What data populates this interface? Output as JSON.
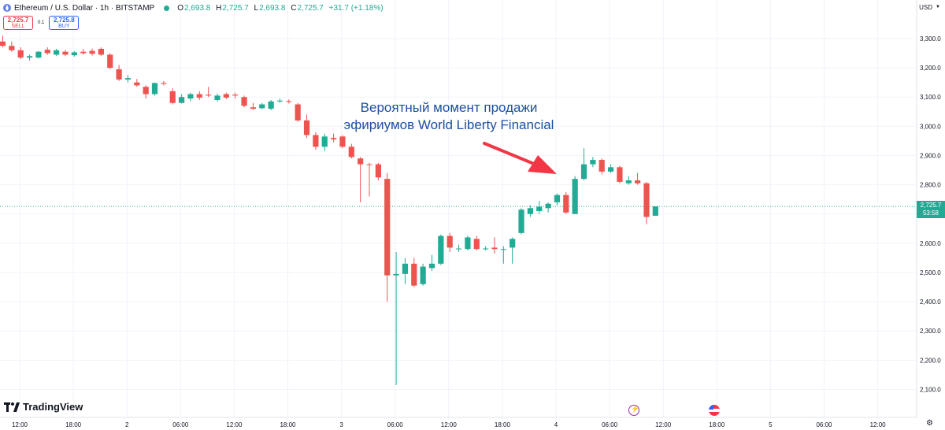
{
  "header": {
    "symbol": "Ethereum / U.S. Dollar · 1h · BITSTAMP",
    "open_label": "O",
    "open": "2,693.8",
    "high_label": "H",
    "high": "2,725.7",
    "low_label": "L",
    "low": "2,693.8",
    "close_label": "C",
    "close": "2,725.7",
    "change": "+31.7 (+1.18%)"
  },
  "trade": {
    "sell_price": "2,725.7",
    "sell_label": "SELL",
    "spread": "0.1",
    "buy_price": "2,725.8",
    "buy_label": "BUY"
  },
  "currency": "USD",
  "last_price": "2,725.7",
  "countdown": "53:58",
  "logo_text": "TradingView",
  "annotation": {
    "line1": "Вероятный момент продажи",
    "line2": "эфириумов World Liberty Financial"
  },
  "colors": {
    "up": "#22ab94",
    "down": "#ef5350",
    "annotation": "#1d4fa3",
    "arrow": "#f23645"
  },
  "chart_data": {
    "type": "candlestick",
    "interval": "1h",
    "ylim": [
      2050,
      3350
    ],
    "y_ticks": [
      2100,
      2200,
      2300,
      2400,
      2500,
      2600,
      2700,
      2800,
      2900,
      3000,
      3100,
      3200,
      3300
    ],
    "y_tick_labels": [
      "2,100.0",
      "2,200.0",
      "2,300.0",
      "2,400.0",
      "2,500.0",
      "2,600.0",
      "2,700.0",
      "2,800.0",
      "2,900.0",
      "3,000.0",
      "3,100.0",
      "3,200.0",
      "3,300.0"
    ],
    "x_labels": [
      "12:00",
      "18:00",
      "2",
      "06:00",
      "12:00",
      "18:00",
      "3",
      "06:00",
      "12:00",
      "18:00",
      "4",
      "06:00",
      "12:00",
      "18:00",
      "5",
      "06:00",
      "12:00"
    ],
    "candles": [
      {
        "o": 3290,
        "h": 3310,
        "l": 3270,
        "c": 3275
      },
      {
        "o": 3275,
        "h": 3290,
        "l": 3255,
        "c": 3260
      },
      {
        "o": 3260,
        "h": 3270,
        "l": 3230,
        "c": 3235
      },
      {
        "o": 3235,
        "h": 3245,
        "l": 3225,
        "c": 3240
      },
      {
        "o": 3235,
        "h": 3258,
        "l": 3232,
        "c": 3255
      },
      {
        "o": 3262,
        "h": 3270,
        "l": 3245,
        "c": 3250
      },
      {
        "o": 3245,
        "h": 3265,
        "l": 3240,
        "c": 3260
      },
      {
        "o": 3255,
        "h": 3262,
        "l": 3240,
        "c": 3245
      },
      {
        "o": 3243,
        "h": 3257,
        "l": 3238,
        "c": 3253
      },
      {
        "o": 3255,
        "h": 3265,
        "l": 3245,
        "c": 3250
      },
      {
        "o": 3258,
        "h": 3266,
        "l": 3242,
        "c": 3248
      },
      {
        "o": 3265,
        "h": 3270,
        "l": 3240,
        "c": 3245
      },
      {
        "o": 3245,
        "h": 3250,
        "l": 3195,
        "c": 3200
      },
      {
        "o": 3195,
        "h": 3210,
        "l": 3155,
        "c": 3160
      },
      {
        "o": 3160,
        "h": 3175,
        "l": 3150,
        "c": 3165
      },
      {
        "o": 3150,
        "h": 3162,
        "l": 3135,
        "c": 3140
      },
      {
        "o": 3135,
        "h": 3140,
        "l": 3095,
        "c": 3110
      },
      {
        "o": 3110,
        "h": 3150,
        "l": 3105,
        "c": 3148
      },
      {
        "o": 3148,
        "h": 3155,
        "l": 3140,
        "c": 3145
      },
      {
        "o": 3120,
        "h": 3130,
        "l": 3075,
        "c": 3080
      },
      {
        "o": 3080,
        "h": 3110,
        "l": 3078,
        "c": 3100
      },
      {
        "o": 3095,
        "h": 3115,
        "l": 3085,
        "c": 3110
      },
      {
        "o": 3110,
        "h": 3120,
        "l": 3090,
        "c": 3098
      },
      {
        "o": 3108,
        "h": 3135,
        "l": 3100,
        "c": 3105
      },
      {
        "o": 3090,
        "h": 3112,
        "l": 3085,
        "c": 3105
      },
      {
        "o": 3110,
        "h": 3115,
        "l": 3093,
        "c": 3098
      },
      {
        "o": 3108,
        "h": 3115,
        "l": 3095,
        "c": 3105
      },
      {
        "o": 3100,
        "h": 3105,
        "l": 3065,
        "c": 3070
      },
      {
        "o": 3065,
        "h": 3080,
        "l": 3055,
        "c": 3060
      },
      {
        "o": 3062,
        "h": 3080,
        "l": 3058,
        "c": 3075
      },
      {
        "o": 3060,
        "h": 3090,
        "l": 3055,
        "c": 3085
      },
      {
        "o": 3085,
        "h": 3095,
        "l": 3080,
        "c": 3088
      },
      {
        "o": 3086,
        "h": 3092,
        "l": 3078,
        "c": 3084
      },
      {
        "o": 3075,
        "h": 3080,
        "l": 3015,
        "c": 3020
      },
      {
        "o": 3020,
        "h": 3040,
        "l": 2960,
        "c": 2970
      },
      {
        "o": 2970,
        "h": 2980,
        "l": 2920,
        "c": 2930
      },
      {
        "o": 2930,
        "h": 2975,
        "l": 2915,
        "c": 2965
      },
      {
        "o": 2960,
        "h": 2975,
        "l": 2945,
        "c": 2955
      },
      {
        "o": 2965,
        "h": 2970,
        "l": 2925,
        "c": 2930
      },
      {
        "o": 2930,
        "h": 2940,
        "l": 2890,
        "c": 2895
      },
      {
        "o": 2890,
        "h": 2895,
        "l": 2740,
        "c": 2870
      },
      {
        "o": 2870,
        "h": 2875,
        "l": 2760,
        "c": 2868
      },
      {
        "o": 2870,
        "h": 2875,
        "l": 2815,
        "c": 2825
      },
      {
        "o": 2820,
        "h": 2840,
        "l": 2400,
        "c": 2490
      },
      {
        "o": 2490,
        "h": 2570,
        "l": 2115,
        "c": 2495
      },
      {
        "o": 2495,
        "h": 2550,
        "l": 2460,
        "c": 2530
      },
      {
        "o": 2530,
        "h": 2550,
        "l": 2450,
        "c": 2455
      },
      {
        "o": 2460,
        "h": 2530,
        "l": 2455,
        "c": 2520
      },
      {
        "o": 2515,
        "h": 2560,
        "l": 2505,
        "c": 2530
      },
      {
        "o": 2530,
        "h": 2630,
        "l": 2525,
        "c": 2625
      },
      {
        "o": 2625,
        "h": 2635,
        "l": 2570,
        "c": 2585
      },
      {
        "o": 2580,
        "h": 2595,
        "l": 2570,
        "c": 2582
      },
      {
        "o": 2580,
        "h": 2625,
        "l": 2575,
        "c": 2620
      },
      {
        "o": 2615,
        "h": 2625,
        "l": 2575,
        "c": 2580
      },
      {
        "o": 2580,
        "h": 2590,
        "l": 2575,
        "c": 2582
      },
      {
        "o": 2585,
        "h": 2620,
        "l": 2565,
        "c": 2580
      },
      {
        "o": 2580,
        "h": 2590,
        "l": 2530,
        "c": 2580
      },
      {
        "o": 2585,
        "h": 2620,
        "l": 2530,
        "c": 2615
      },
      {
        "o": 2635,
        "h": 2720,
        "l": 2630,
        "c": 2715
      },
      {
        "o": 2700,
        "h": 2730,
        "l": 2690,
        "c": 2720
      },
      {
        "o": 2710,
        "h": 2745,
        "l": 2700,
        "c": 2725
      },
      {
        "o": 2720,
        "h": 2740,
        "l": 2705,
        "c": 2735
      },
      {
        "o": 2740,
        "h": 2770,
        "l": 2730,
        "c": 2765
      },
      {
        "o": 2765,
        "h": 2775,
        "l": 2700,
        "c": 2705
      },
      {
        "o": 2700,
        "h": 2830,
        "l": 2700,
        "c": 2820
      },
      {
        "o": 2820,
        "h": 2925,
        "l": 2815,
        "c": 2870
      },
      {
        "o": 2870,
        "h": 2895,
        "l": 2860,
        "c": 2885
      },
      {
        "o": 2885,
        "h": 2890,
        "l": 2835,
        "c": 2845
      },
      {
        "o": 2845,
        "h": 2870,
        "l": 2840,
        "c": 2860
      },
      {
        "o": 2860,
        "h": 2865,
        "l": 2805,
        "c": 2810
      },
      {
        "o": 2805,
        "h": 2830,
        "l": 2800,
        "c": 2815
      },
      {
        "o": 2815,
        "h": 2840,
        "l": 2800,
        "c": 2805
      },
      {
        "o": 2805,
        "h": 2810,
        "l": 2665,
        "c": 2690
      },
      {
        "o": 2694,
        "h": 2726,
        "l": 2694,
        "c": 2726
      }
    ]
  }
}
